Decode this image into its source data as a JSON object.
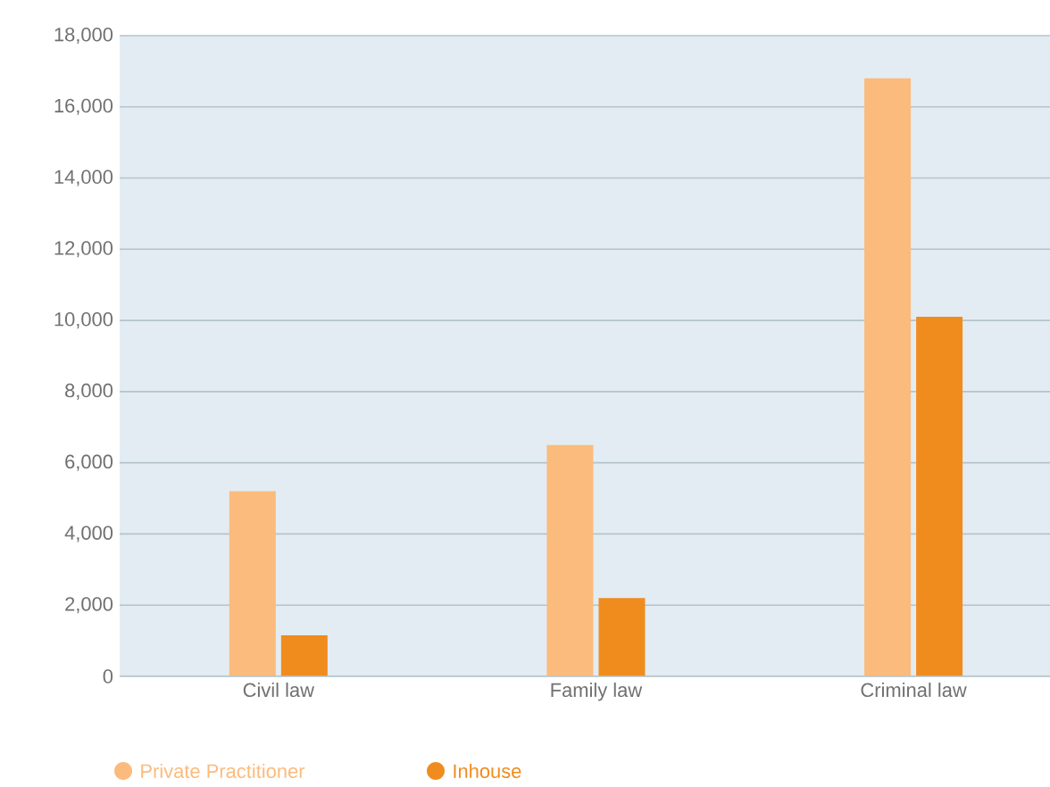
{
  "chart_data": {
    "type": "bar",
    "categories": [
      "Civil law",
      "Family law",
      "Criminal law"
    ],
    "series": [
      {
        "name": "Private Practitioner",
        "color": "#fbbb7c",
        "values": [
          5200,
          6500,
          16800
        ]
      },
      {
        "name": "Inhouse",
        "color": "#f08c1e",
        "values": [
          1150,
          2200,
          10100
        ]
      }
    ],
    "ylim": [
      0,
      18000
    ],
    "yticks": [
      {
        "value": 0,
        "label": "0"
      },
      {
        "value": 2000,
        "label": "2,000"
      },
      {
        "value": 4000,
        "label": "4,000"
      },
      {
        "value": 6000,
        "label": "6,000"
      },
      {
        "value": 8000,
        "label": "8,000"
      },
      {
        "value": 10000,
        "label": "10,000"
      },
      {
        "value": 12000,
        "label": "12,000"
      },
      {
        "value": 14000,
        "label": "14,000"
      },
      {
        "value": 16000,
        "label": "16,000"
      },
      {
        "value": 18000,
        "label": "18,000"
      }
    ],
    "grid": "y",
    "legend": "bottom left"
  }
}
